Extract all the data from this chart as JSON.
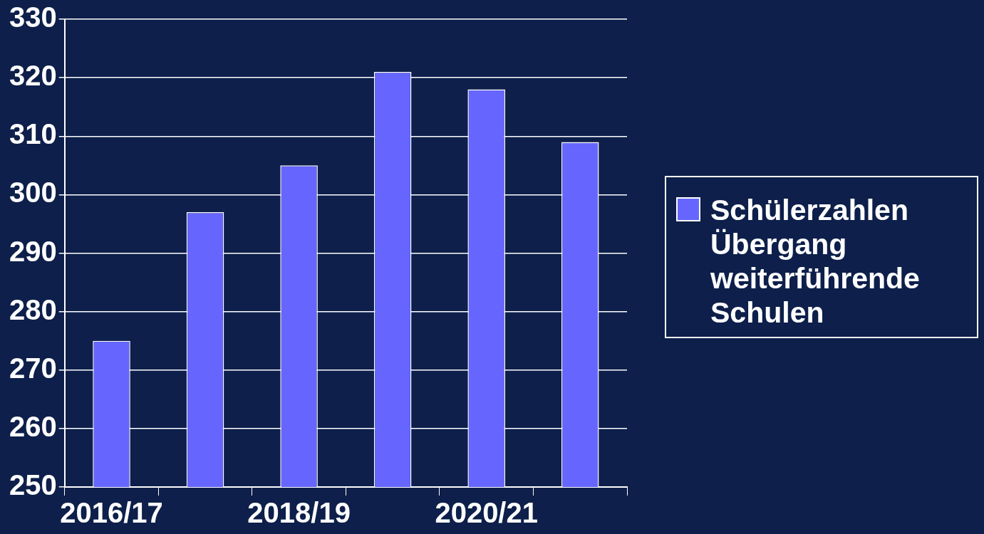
{
  "chart_data": {
    "type": "bar",
    "categories": [
      "2016/17",
      null,
      "2018/19",
      null,
      "2020/21",
      null
    ],
    "series": [
      {
        "name": "Schülerzahlen Übergang weiterführende Schulen",
        "color": "#6666ff",
        "values": [
          275,
          297,
          305,
          321,
          318,
          309
        ]
      }
    ],
    "ylim": [
      250,
      330
    ],
    "yticks": [
      250,
      260,
      270,
      280,
      290,
      300,
      310,
      320,
      330
    ],
    "grid": "y",
    "legend": "right"
  }
}
